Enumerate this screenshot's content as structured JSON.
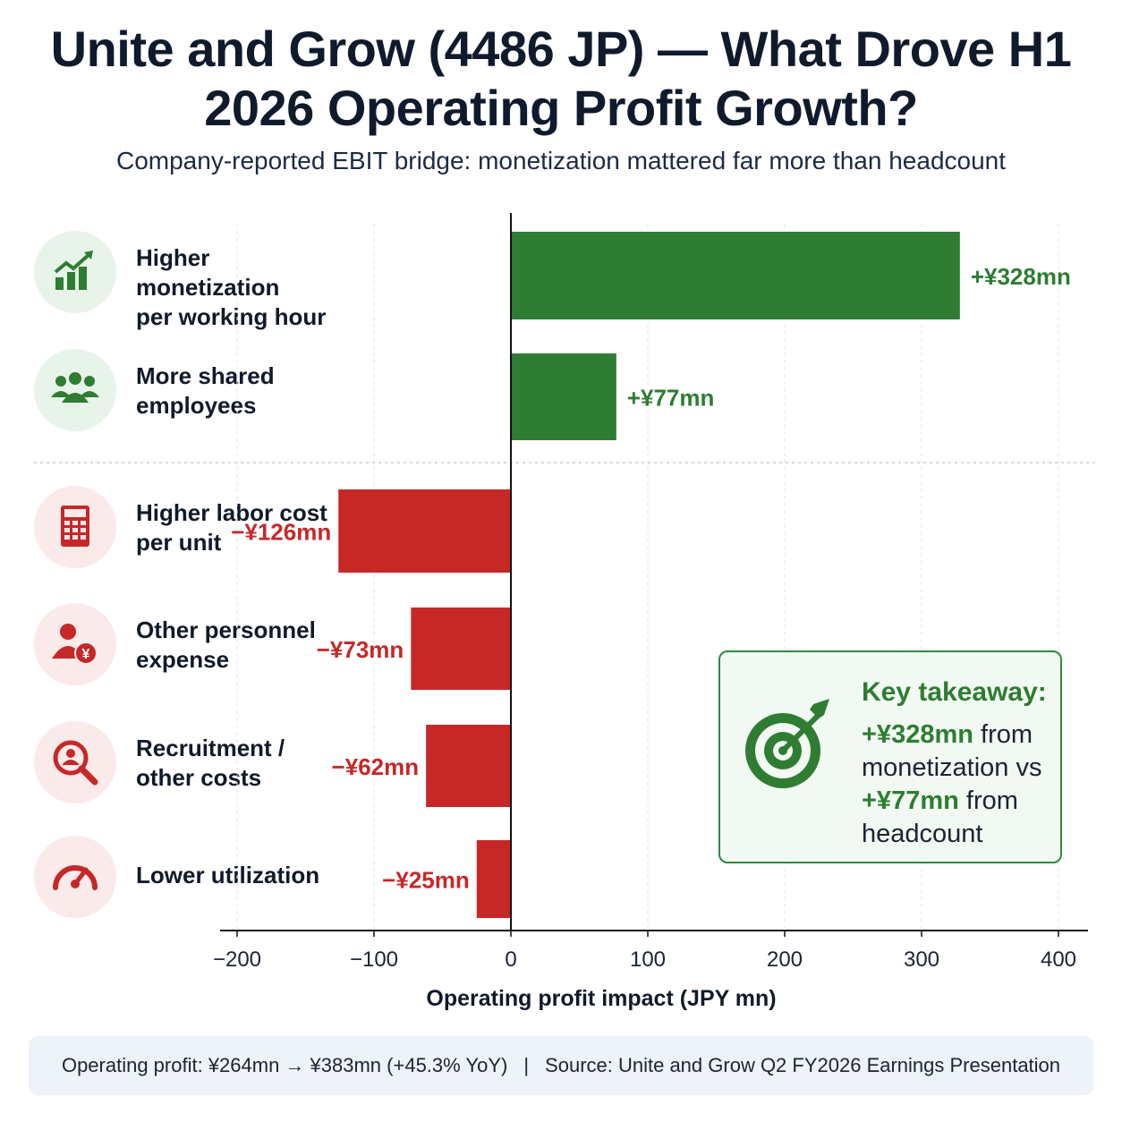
{
  "title": "Unite and Grow (4486 JP) — What Drove H1 2026 Operating Profit Growth?",
  "subtitle": "Company-reported EBIT bridge: monetization mattered far more than headcount",
  "colors": {
    "positive": "#2e7d32",
    "negative": "#c62828",
    "positive_label": "#2e7d32",
    "negative_label": "#c62828"
  },
  "rows": [
    {
      "label_line1": "Higher monetization",
      "label_line2": "per working hour",
      "icon": "growth-chart-icon",
      "tone": "positive"
    },
    {
      "label_line1": "More shared",
      "label_line2": "employees",
      "icon": "people-group-icon",
      "tone": "positive"
    },
    {
      "label_line1": "Higher labor cost",
      "label_line2": "per unit",
      "icon": "calculator-icon",
      "tone": "negative"
    },
    {
      "label_line1": "Other personnel",
      "label_line2": "expense",
      "icon": "person-yen-icon",
      "tone": "negative"
    },
    {
      "label_line1": "Recruitment /",
      "label_line2": "other costs",
      "icon": "search-person-icon",
      "tone": "negative"
    },
    {
      "label_line1": "Lower utilization",
      "label_line2": "",
      "icon": "speedometer-icon",
      "tone": "negative"
    }
  ],
  "chart_data": {
    "type": "bar",
    "orientation": "horizontal",
    "categories": [
      "Higher monetization per working hour",
      "More shared employees",
      "Higher labor cost per unit",
      "Other personnel expense",
      "Recruitment / other costs",
      "Lower utilization"
    ],
    "values": [
      328,
      77,
      -126,
      -73,
      -62,
      -25
    ],
    "value_labels": [
      "+¥328mn",
      "+¥77mn",
      "−¥126mn",
      "−¥73mn",
      "−¥62mn",
      "−¥25mn"
    ],
    "xlabel": "Operating profit impact (JPY mn)",
    "xticks": [
      -200,
      -100,
      0,
      100,
      200,
      300,
      400
    ],
    "xtick_labels": [
      "−200",
      "−100",
      "0",
      "100",
      "200",
      "300",
      "400"
    ],
    "xlim": [
      -215,
      430
    ],
    "grid": "vertical dashed"
  },
  "takeaway": {
    "title": "Key takeaway:",
    "value1": "+¥328mn",
    "text1": " from monetization vs ",
    "value2": "+¥77mn",
    "text2": " from headcount",
    "icon": "target-arrow-icon"
  },
  "footer": {
    "left": "Operating profit: ¥264mn → ¥383mn (+45.3% YoY)",
    "separator": "|",
    "right": "Source: Unite and Grow Q2 FY2026 Earnings Presentation"
  }
}
